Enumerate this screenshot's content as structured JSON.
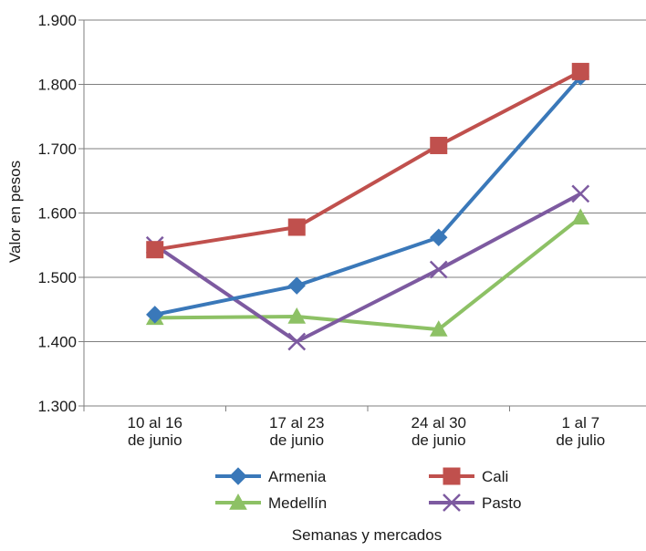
{
  "chart_data": {
    "type": "line",
    "title": "",
    "xlabel": "Semanas y mercados",
    "ylabel": "Valor en pesos",
    "categories": [
      [
        "10 al 16",
        "de junio"
      ],
      [
        "17 al 23",
        "de junio"
      ],
      [
        "24 al 30",
        "de junio"
      ],
      [
        "1 al 7",
        "de julio"
      ]
    ],
    "ylim": [
      1300,
      1900
    ],
    "yticks": [
      1300,
      1400,
      1500,
      1600,
      1700,
      1800,
      1900
    ],
    "ytick_labels": [
      "1.300",
      "1.400",
      "1.500",
      "1.600",
      "1.700",
      "1.800",
      "1.900"
    ],
    "grid": "horizontal",
    "legend_position": "bottom",
    "series": [
      {
        "name": "Armenia",
        "color": "#3a78b9",
        "marker": "diamond",
        "values": [
          1442,
          1487,
          1562,
          1812
        ]
      },
      {
        "name": "Cali",
        "color": "#c0504d",
        "marker": "square",
        "values": [
          1543,
          1578,
          1705,
          1820
        ]
      },
      {
        "name": "Medellín",
        "color": "#8dc165",
        "marker": "triangle",
        "values": [
          1437,
          1439,
          1419,
          1593
        ]
      },
      {
        "name": "Pasto",
        "color": "#7d5aa0",
        "marker": "x",
        "values": [
          1550,
          1400,
          1512,
          1630
        ]
      }
    ]
  }
}
